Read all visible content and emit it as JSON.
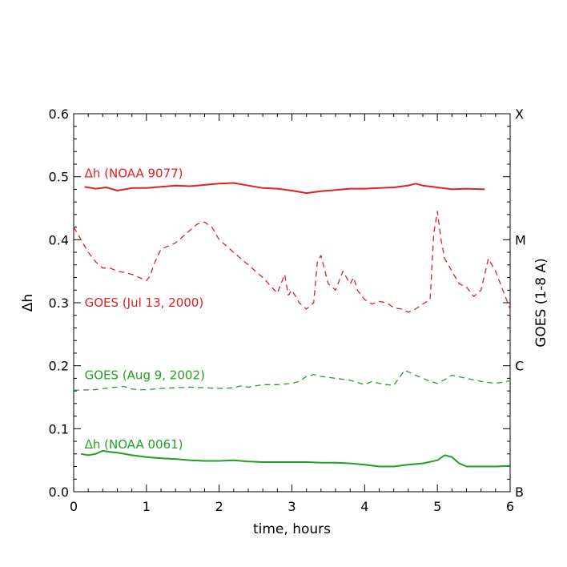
{
  "chart_data": {
    "type": "line",
    "xlabel": "time, hours",
    "ylabel": "Δh",
    "y2label": "GOES (1-8 A)",
    "xlim": [
      0,
      6
    ],
    "ylim": [
      0,
      0.6
    ],
    "x_ticks": [
      0,
      1,
      2,
      3,
      4,
      5,
      6
    ],
    "x_tick_labels": [
      "0",
      "1",
      "2",
      "3",
      "4",
      "5",
      "6"
    ],
    "y_ticks": [
      0.0,
      0.1,
      0.2,
      0.3,
      0.4,
      0.5,
      0.6
    ],
    "y_tick_labels": [
      "0.0",
      "0.1",
      "0.2",
      "0.3",
      "0.4",
      "0.5",
      "0.6"
    ],
    "y2_ticks": [
      {
        "y": 0.0,
        "label": "B"
      },
      {
        "y": 0.2,
        "label": "C"
      },
      {
        "y": 0.4,
        "label": "M"
      },
      {
        "y": 0.6,
        "label": "X"
      }
    ],
    "grid": false,
    "series": [
      {
        "name": "Δh (NOAA 9077)",
        "color": "#e02020",
        "style": "solid",
        "label_pos": [
          0.15,
          0.505
        ],
        "x": [
          0.15,
          0.3,
          0.45,
          0.6,
          0.8,
          1.0,
          1.2,
          1.4,
          1.6,
          1.8,
          2.0,
          2.2,
          2.4,
          2.6,
          2.8,
          3.0,
          3.2,
          3.4,
          3.6,
          3.8,
          4.0,
          4.2,
          4.4,
          4.6,
          4.7,
          4.8,
          5.0,
          5.2,
          5.4,
          5.65
        ],
        "y": [
          0.484,
          0.481,
          0.483,
          0.478,
          0.482,
          0.482,
          0.484,
          0.486,
          0.485,
          0.487,
          0.489,
          0.49,
          0.486,
          0.482,
          0.481,
          0.478,
          0.474,
          0.477,
          0.479,
          0.481,
          0.481,
          0.482,
          0.483,
          0.486,
          0.489,
          0.486,
          0.483,
          0.48,
          0.481,
          0.48
        ]
      },
      {
        "name": "GOES (Jul 13, 2000)",
        "color": "#e02020",
        "style": "dashed",
        "label_pos": [
          0.15,
          0.3
        ],
        "x": [
          0.0,
          0.1,
          0.2,
          0.3,
          0.4,
          0.5,
          0.6,
          0.7,
          0.8,
          0.9,
          1.0,
          1.05,
          1.1,
          1.2,
          1.3,
          1.4,
          1.5,
          1.6,
          1.7,
          1.8,
          1.9,
          2.0,
          2.1,
          2.2,
          2.4,
          2.6,
          2.8,
          2.9,
          2.95,
          3.0,
          3.1,
          3.2,
          3.3,
          3.35,
          3.4,
          3.5,
          3.6,
          3.7,
          3.8,
          3.85,
          3.9,
          4.0,
          4.1,
          4.2,
          4.3,
          4.4,
          4.5,
          4.6,
          4.7,
          4.8,
          4.9,
          4.95,
          5.0,
          5.05,
          5.1,
          5.2,
          5.3,
          5.4,
          5.5,
          5.6,
          5.7,
          5.8,
          5.9,
          6.0
        ],
        "y": [
          0.42,
          0.4,
          0.38,
          0.365,
          0.355,
          0.355,
          0.35,
          0.348,
          0.345,
          0.34,
          0.335,
          0.342,
          0.36,
          0.385,
          0.39,
          0.395,
          0.405,
          0.415,
          0.425,
          0.428,
          0.42,
          0.4,
          0.39,
          0.38,
          0.36,
          0.34,
          0.315,
          0.345,
          0.312,
          0.32,
          0.3,
          0.29,
          0.3,
          0.365,
          0.375,
          0.33,
          0.32,
          0.35,
          0.33,
          0.34,
          0.32,
          0.305,
          0.298,
          0.302,
          0.3,
          0.292,
          0.29,
          0.285,
          0.29,
          0.298,
          0.305,
          0.41,
          0.445,
          0.4,
          0.37,
          0.35,
          0.33,
          0.325,
          0.31,
          0.32,
          0.37,
          0.35,
          0.32,
          0.29
        ]
      },
      {
        "name": "GOES (Aug 9, 2002)",
        "color": "#20a020",
        "style": "dashed",
        "label_pos": [
          0.15,
          0.185
        ],
        "x": [
          0.0,
          0.3,
          0.5,
          0.7,
          0.8,
          0.9,
          1.0,
          1.2,
          1.4,
          1.6,
          1.8,
          2.0,
          2.2,
          2.3,
          2.4,
          2.6,
          2.8,
          3.0,
          3.1,
          3.2,
          3.3,
          3.4,
          3.6,
          3.8,
          4.0,
          4.1,
          4.2,
          4.3,
          4.4,
          4.5,
          4.55,
          4.7,
          4.9,
          5.0,
          5.1,
          5.2,
          5.4,
          5.6,
          5.8,
          6.0
        ],
        "y": [
          0.161,
          0.162,
          0.165,
          0.167,
          0.163,
          0.162,
          0.162,
          0.164,
          0.165,
          0.166,
          0.165,
          0.164,
          0.165,
          0.168,
          0.166,
          0.17,
          0.17,
          0.172,
          0.175,
          0.183,
          0.186,
          0.183,
          0.18,
          0.177,
          0.17,
          0.175,
          0.172,
          0.17,
          0.169,
          0.185,
          0.193,
          0.185,
          0.175,
          0.172,
          0.178,
          0.185,
          0.18,
          0.175,
          0.172,
          0.176
        ]
      },
      {
        "name": "Δh (NOAA 0061)",
        "color": "#20a020",
        "style": "solid",
        "label_pos": [
          0.15,
          0.075
        ],
        "x": [
          0.1,
          0.2,
          0.3,
          0.4,
          0.5,
          0.6,
          0.8,
          1.0,
          1.2,
          1.4,
          1.6,
          1.8,
          2.0,
          2.2,
          2.4,
          2.6,
          2.8,
          3.0,
          3.2,
          3.4,
          3.6,
          3.8,
          4.0,
          4.2,
          4.4,
          4.6,
          4.8,
          5.0,
          5.1,
          5.2,
          5.3,
          5.4,
          5.6,
          5.8,
          6.0
        ],
        "y": [
          0.06,
          0.058,
          0.06,
          0.065,
          0.063,
          0.062,
          0.058,
          0.055,
          0.053,
          0.052,
          0.05,
          0.049,
          0.049,
          0.05,
          0.048,
          0.047,
          0.047,
          0.047,
          0.047,
          0.046,
          0.046,
          0.045,
          0.043,
          0.04,
          0.04,
          0.043,
          0.045,
          0.05,
          0.058,
          0.055,
          0.045,
          0.04,
          0.04,
          0.04,
          0.041
        ]
      }
    ]
  }
}
